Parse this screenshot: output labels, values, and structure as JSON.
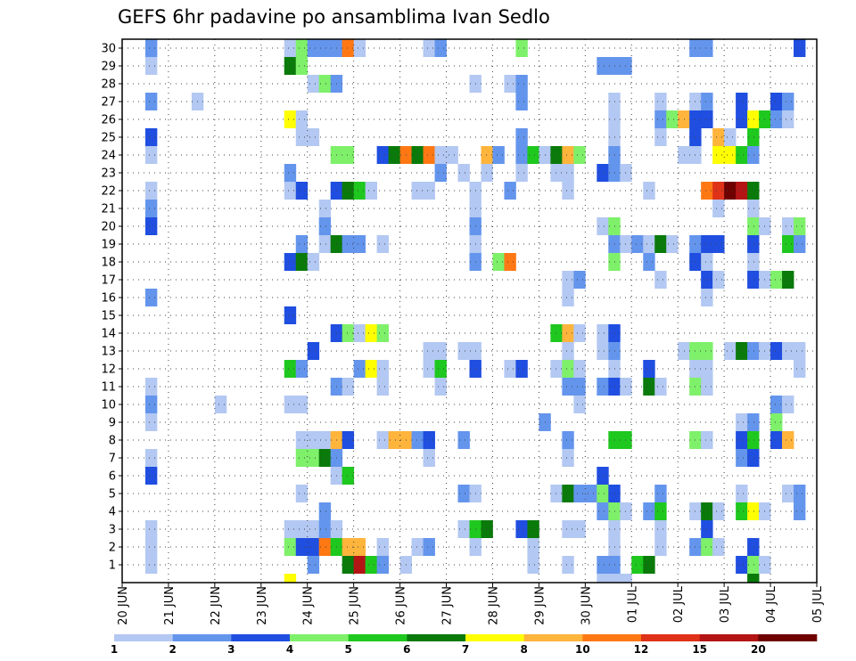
{
  "chart_data": {
    "type": "heatmap",
    "title": "GEFS 6hr padavine po ansamblima Ivan Sedlo",
    "y_ticks": [
      "1",
      "2",
      "3",
      "4",
      "5",
      "6",
      "7",
      "8",
      "9",
      "10",
      "11",
      "12",
      "13",
      "14",
      "15",
      "16",
      "17",
      "18",
      "19",
      "20",
      "21",
      "22",
      "23",
      "24",
      "25",
      "26",
      "27",
      "28",
      "29",
      "30"
    ],
    "x_tick_labels": [
      "20 JUN",
      "21 JUN",
      "22 JUN",
      "23 JUN",
      "24 JUN",
      "25 JUN",
      "26 JUN",
      "27 JUN",
      "28 JUN",
      "29 JUN",
      "30 JUN",
      "01 JUL",
      "02 JUL",
      "03 JUL",
      "04 JUL",
      "05 JUL"
    ],
    "x_steps_per_day": 4,
    "x_total_steps": 60,
    "grid": true,
    "legend_placement": "bottom",
    "legend_levels": [
      "1",
      "2",
      "3",
      "4",
      "5",
      "6",
      "7",
      "8",
      "10",
      "12",
      "15",
      "20"
    ],
    "legend_colors": [
      "#b3c8f2",
      "#6495ed",
      "#1f4ee0",
      "#7ef06a",
      "#1ec81e",
      "#0a7a0a",
      "#ffff00",
      "#ffb43c",
      "#ff7814",
      "#e03218",
      "#b41414",
      "#6e0000"
    ],
    "cells": [
      [
        2,
        30,
        1
      ],
      [
        14,
        30,
        0
      ],
      [
        15,
        30,
        3
      ],
      [
        16,
        30,
        1
      ],
      [
        17,
        30,
        1
      ],
      [
        18,
        30,
        1
      ],
      [
        19,
        30,
        8
      ],
      [
        20,
        30,
        0
      ],
      [
        26,
        30,
        0
      ],
      [
        27,
        30,
        1
      ],
      [
        34,
        30,
        3
      ],
      [
        49,
        30,
        1
      ],
      [
        50,
        30,
        1
      ],
      [
        58,
        30,
        2
      ],
      [
        2,
        29,
        0
      ],
      [
        14,
        29,
        5
      ],
      [
        15,
        29,
        3
      ],
      [
        41,
        29,
        1
      ],
      [
        42,
        29,
        1
      ],
      [
        43,
        29,
        1
      ],
      [
        16,
        28,
        0
      ],
      [
        17,
        28,
        3
      ],
      [
        18,
        28,
        1
      ],
      [
        30,
        28,
        0
      ],
      [
        33,
        28,
        0
      ],
      [
        34,
        28,
        1
      ],
      [
        2,
        27,
        1
      ],
      [
        6,
        27,
        0
      ],
      [
        34,
        27,
        1
      ],
      [
        42,
        27,
        0
      ],
      [
        46,
        27,
        0
      ],
      [
        49,
        27,
        0
      ],
      [
        50,
        27,
        1
      ],
      [
        53,
        27,
        2
      ],
      [
        56,
        27,
        2
      ],
      [
        57,
        27,
        1
      ],
      [
        14,
        26,
        6
      ],
      [
        15,
        26,
        0
      ],
      [
        42,
        26,
        0
      ],
      [
        46,
        26,
        1
      ],
      [
        47,
        26,
        3
      ],
      [
        48,
        26,
        7
      ],
      [
        49,
        26,
        2
      ],
      [
        50,
        26,
        2
      ],
      [
        53,
        26,
        2
      ],
      [
        54,
        26,
        6
      ],
      [
        55,
        26,
        4
      ],
      [
        56,
        26,
        1
      ],
      [
        57,
        26,
        0
      ],
      [
        2,
        25,
        2
      ],
      [
        15,
        25,
        0
      ],
      [
        16,
        25,
        0
      ],
      [
        34,
        25,
        1
      ],
      [
        42,
        25,
        0
      ],
      [
        46,
        25,
        0
      ],
      [
        49,
        25,
        2
      ],
      [
        51,
        25,
        7
      ],
      [
        52,
        25,
        0
      ],
      [
        54,
        25,
        4
      ],
      [
        2,
        24,
        0
      ],
      [
        18,
        24,
        3
      ],
      [
        19,
        24,
        3
      ],
      [
        22,
        24,
        2
      ],
      [
        23,
        24,
        5
      ],
      [
        24,
        24,
        8
      ],
      [
        25,
        24,
        5
      ],
      [
        26,
        24,
        8
      ],
      [
        27,
        24,
        0
      ],
      [
        28,
        24,
        0
      ],
      [
        31,
        24,
        7
      ],
      [
        32,
        24,
        1
      ],
      [
        34,
        24,
        1
      ],
      [
        35,
        24,
        4
      ],
      [
        36,
        24,
        0
      ],
      [
        37,
        24,
        5
      ],
      [
        38,
        24,
        7
      ],
      [
        39,
        24,
        3
      ],
      [
        42,
        24,
        1
      ],
      [
        48,
        24,
        0
      ],
      [
        49,
        24,
        0
      ],
      [
        51,
        24,
        6
      ],
      [
        52,
        24,
        6
      ],
      [
        53,
        24,
        4
      ],
      [
        54,
        24,
        1
      ],
      [
        14,
        23,
        1
      ],
      [
        27,
        23,
        1
      ],
      [
        29,
        23,
        0
      ],
      [
        31,
        23,
        0
      ],
      [
        34,
        23,
        0
      ],
      [
        37,
        23,
        0
      ],
      [
        38,
        23,
        0
      ],
      [
        41,
        23,
        2
      ],
      [
        42,
        23,
        1
      ],
      [
        43,
        23,
        0
      ],
      [
        2,
        22,
        0
      ],
      [
        14,
        22,
        0
      ],
      [
        15,
        22,
        2
      ],
      [
        18,
        22,
        2
      ],
      [
        19,
        22,
        5
      ],
      [
        20,
        22,
        4
      ],
      [
        21,
        22,
        0
      ],
      [
        25,
        22,
        0
      ],
      [
        26,
        22,
        0
      ],
      [
        30,
        22,
        0
      ],
      [
        33,
        22,
        1
      ],
      [
        38,
        22,
        0
      ],
      [
        45,
        22,
        0
      ],
      [
        50,
        22,
        8
      ],
      [
        51,
        22,
        9
      ],
      [
        52,
        22,
        11
      ],
      [
        53,
        22,
        10
      ],
      [
        54,
        22,
        5
      ],
      [
        2,
        21,
        1
      ],
      [
        17,
        21,
        0
      ],
      [
        30,
        21,
        0
      ],
      [
        51,
        21,
        0
      ],
      [
        54,
        21,
        0
      ],
      [
        2,
        20,
        2
      ],
      [
        17,
        20,
        1
      ],
      [
        30,
        20,
        1
      ],
      [
        41,
        20,
        0
      ],
      [
        42,
        20,
        3
      ],
      [
        54,
        20,
        3
      ],
      [
        55,
        20,
        0
      ],
      [
        57,
        20,
        0
      ],
      [
        58,
        20,
        3
      ],
      [
        15,
        19,
        1
      ],
      [
        17,
        19,
        0
      ],
      [
        18,
        19,
        5
      ],
      [
        19,
        19,
        1
      ],
      [
        20,
        19,
        1
      ],
      [
        22,
        19,
        0
      ],
      [
        30,
        19,
        0
      ],
      [
        42,
        19,
        1
      ],
      [
        43,
        19,
        0
      ],
      [
        44,
        19,
        1
      ],
      [
        45,
        19,
        0
      ],
      [
        46,
        19,
        5
      ],
      [
        47,
        19,
        0
      ],
      [
        49,
        19,
        1
      ],
      [
        50,
        19,
        2
      ],
      [
        51,
        19,
        2
      ],
      [
        54,
        19,
        2
      ],
      [
        57,
        19,
        4
      ],
      [
        58,
        19,
        1
      ],
      [
        14,
        18,
        2
      ],
      [
        15,
        18,
        5
      ],
      [
        16,
        18,
        0
      ],
      [
        30,
        18,
        1
      ],
      [
        32,
        18,
        3
      ],
      [
        33,
        18,
        8
      ],
      [
        42,
        18,
        3
      ],
      [
        45,
        18,
        1
      ],
      [
        49,
        18,
        2
      ],
      [
        50,
        18,
        0
      ],
      [
        54,
        18,
        0
      ],
      [
        38,
        17,
        0
      ],
      [
        39,
        17,
        1
      ],
      [
        46,
        17,
        0
      ],
      [
        50,
        17,
        2
      ],
      [
        51,
        17,
        0
      ],
      [
        54,
        17,
        2
      ],
      [
        55,
        17,
        0
      ],
      [
        56,
        17,
        3
      ],
      [
        57,
        17,
        5
      ],
      [
        2,
        16,
        1
      ],
      [
        38,
        16,
        0
      ],
      [
        50,
        16,
        0
      ],
      [
        14,
        15,
        2
      ],
      [
        18,
        14,
        2
      ],
      [
        19,
        14,
        3
      ],
      [
        20,
        14,
        0
      ],
      [
        21,
        14,
        6
      ],
      [
        22,
        14,
        3
      ],
      [
        37,
        14,
        4
      ],
      [
        38,
        14,
        7
      ],
      [
        39,
        14,
        0
      ],
      [
        41,
        14,
        0
      ],
      [
        42,
        14,
        2
      ],
      [
        16,
        13,
        2
      ],
      [
        26,
        13,
        0
      ],
      [
        27,
        13,
        0
      ],
      [
        29,
        13,
        0
      ],
      [
        30,
        13,
        0
      ],
      [
        38,
        13,
        0
      ],
      [
        41,
        13,
        0
      ],
      [
        42,
        13,
        1
      ],
      [
        48,
        13,
        0
      ],
      [
        49,
        13,
        3
      ],
      [
        50,
        13,
        3
      ],
      [
        52,
        13,
        0
      ],
      [
        53,
        13,
        5
      ],
      [
        54,
        13,
        1
      ],
      [
        55,
        13,
        0
      ],
      [
        56,
        13,
        2
      ],
      [
        57,
        13,
        0
      ],
      [
        58,
        13,
        0
      ],
      [
        14,
        12,
        4
      ],
      [
        15,
        12,
        1
      ],
      [
        20,
        12,
        1
      ],
      [
        21,
        12,
        6
      ],
      [
        22,
        12,
        0
      ],
      [
        26,
        12,
        0
      ],
      [
        27,
        12,
        4
      ],
      [
        30,
        12,
        2
      ],
      [
        33,
        12,
        0
      ],
      [
        34,
        12,
        2
      ],
      [
        37,
        12,
        0
      ],
      [
        38,
        12,
        3
      ],
      [
        39,
        12,
        0
      ],
      [
        42,
        12,
        0
      ],
      [
        45,
        12,
        2
      ],
      [
        49,
        12,
        0
      ],
      [
        50,
        12,
        0
      ],
      [
        58,
        12,
        0
      ],
      [
        2,
        11,
        0
      ],
      [
        18,
        11,
        1
      ],
      [
        19,
        11,
        0
      ],
      [
        22,
        11,
        0
      ],
      [
        27,
        11,
        0
      ],
      [
        38,
        11,
        1
      ],
      [
        39,
        11,
        1
      ],
      [
        41,
        11,
        1
      ],
      [
        42,
        11,
        2
      ],
      [
        43,
        11,
        0
      ],
      [
        45,
        11,
        5
      ],
      [
        46,
        11,
        0
      ],
      [
        49,
        11,
        3
      ],
      [
        50,
        11,
        0
      ],
      [
        2,
        10,
        1
      ],
      [
        8,
        10,
        0
      ],
      [
        14,
        10,
        0
      ],
      [
        15,
        10,
        0
      ],
      [
        39,
        10,
        0
      ],
      [
        56,
        10,
        1
      ],
      [
        57,
        10,
        0
      ],
      [
        2,
        9,
        0
      ],
      [
        36,
        9,
        1
      ],
      [
        53,
        9,
        0
      ],
      [
        54,
        9,
        1
      ],
      [
        56,
        9,
        3
      ],
      [
        15,
        8,
        0
      ],
      [
        16,
        8,
        0
      ],
      [
        17,
        8,
        0
      ],
      [
        18,
        8,
        7
      ],
      [
        19,
        8,
        2
      ],
      [
        22,
        8,
        0
      ],
      [
        23,
        8,
        7
      ],
      [
        24,
        8,
        7
      ],
      [
        25,
        8,
        1
      ],
      [
        26,
        8,
        2
      ],
      [
        29,
        8,
        1
      ],
      [
        38,
        8,
        1
      ],
      [
        42,
        8,
        4
      ],
      [
        43,
        8,
        4
      ],
      [
        49,
        8,
        3
      ],
      [
        50,
        8,
        0
      ],
      [
        53,
        8,
        2
      ],
      [
        54,
        8,
        4
      ],
      [
        56,
        8,
        2
      ],
      [
        57,
        8,
        7
      ],
      [
        2,
        7,
        0
      ],
      [
        15,
        7,
        3
      ],
      [
        16,
        7,
        3
      ],
      [
        17,
        7,
        5
      ],
      [
        18,
        7,
        1
      ],
      [
        26,
        7,
        0
      ],
      [
        38,
        7,
        0
      ],
      [
        53,
        7,
        1
      ],
      [
        54,
        7,
        2
      ],
      [
        2,
        6,
        2
      ],
      [
        18,
        6,
        0
      ],
      [
        19,
        6,
        4
      ],
      [
        41,
        6,
        2
      ],
      [
        15,
        5,
        0
      ],
      [
        29,
        5,
        1
      ],
      [
        30,
        5,
        0
      ],
      [
        37,
        5,
        0
      ],
      [
        38,
        5,
        5
      ],
      [
        39,
        5,
        1
      ],
      [
        40,
        5,
        1
      ],
      [
        41,
        5,
        3
      ],
      [
        42,
        5,
        2
      ],
      [
        46,
        5,
        1
      ],
      [
        53,
        5,
        0
      ],
      [
        57,
        5,
        0
      ],
      [
        58,
        5,
        1
      ],
      [
        17,
        4,
        1
      ],
      [
        41,
        4,
        1
      ],
      [
        42,
        4,
        3
      ],
      [
        43,
        4,
        0
      ],
      [
        45,
        4,
        1
      ],
      [
        46,
        4,
        4
      ],
      [
        49,
        4,
        0
      ],
      [
        50,
        4,
        5
      ],
      [
        51,
        4,
        0
      ],
      [
        53,
        4,
        4
      ],
      [
        54,
        4,
        6
      ],
      [
        55,
        4,
        0
      ],
      [
        58,
        4,
        1
      ],
      [
        2,
        3,
        0
      ],
      [
        14,
        3,
        0
      ],
      [
        15,
        3,
        0
      ],
      [
        16,
        3,
        0
      ],
      [
        17,
        3,
        1
      ],
      [
        18,
        3,
        0
      ],
      [
        29,
        3,
        0
      ],
      [
        30,
        3,
        4
      ],
      [
        31,
        3,
        5
      ],
      [
        34,
        3,
        2
      ],
      [
        35,
        3,
        5
      ],
      [
        38,
        3,
        0
      ],
      [
        39,
        3,
        0
      ],
      [
        42,
        3,
        0
      ],
      [
        46,
        3,
        0
      ],
      [
        50,
        3,
        2
      ],
      [
        2,
        2,
        0
      ],
      [
        14,
        2,
        3
      ],
      [
        15,
        2,
        2
      ],
      [
        16,
        2,
        2
      ],
      [
        17,
        2,
        8
      ],
      [
        18,
        2,
        4
      ],
      [
        19,
        2,
        7
      ],
      [
        20,
        2,
        7
      ],
      [
        22,
        2,
        0
      ],
      [
        25,
        2,
        0
      ],
      [
        26,
        2,
        1
      ],
      [
        30,
        2,
        0
      ],
      [
        35,
        2,
        0
      ],
      [
        42,
        2,
        0
      ],
      [
        46,
        2,
        0
      ],
      [
        49,
        2,
        1
      ],
      [
        50,
        2,
        3
      ],
      [
        51,
        2,
        0
      ],
      [
        54,
        2,
        2
      ],
      [
        2,
        1,
        0
      ],
      [
        16,
        1,
        1
      ],
      [
        19,
        1,
        5
      ],
      [
        20,
        1,
        10
      ],
      [
        21,
        1,
        4
      ],
      [
        22,
        1,
        1
      ],
      [
        24,
        1,
        0
      ],
      [
        35,
        1,
        0
      ],
      [
        38,
        1,
        0
      ],
      [
        41,
        1,
        1
      ],
      [
        42,
        1,
        1
      ],
      [
        44,
        1,
        4
      ],
      [
        45,
        1,
        5
      ],
      [
        53,
        1,
        2
      ],
      [
        54,
        1,
        3
      ],
      [
        55,
        1,
        0
      ],
      [
        14,
        0,
        6
      ],
      [
        41,
        0,
        0
      ],
      [
        42,
        0,
        0
      ],
      [
        43,
        0,
        0
      ],
      [
        54,
        0,
        5
      ]
    ]
  }
}
